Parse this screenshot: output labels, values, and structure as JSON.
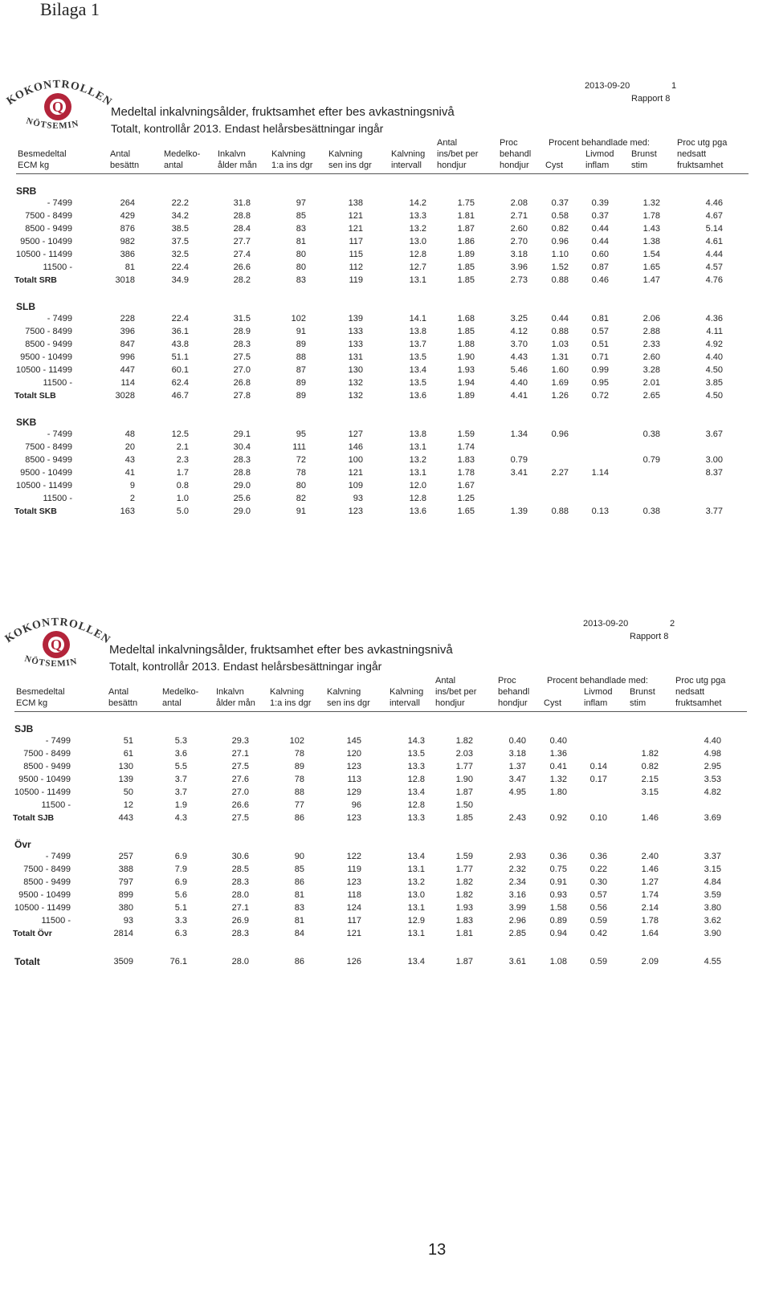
{
  "page": {
    "label": "Bilaga 1",
    "number": "13"
  },
  "reports": [
    {
      "logo": {
        "top": "KOKONTROLLEN",
        "mark": "Q",
        "bottom": "NÖTSEMIN"
      },
      "date": "2013-09-20",
      "page": "1",
      "report": "Rapport 8",
      "title": "Medeltal inkalvningsålder, fruktsamhet efter bes avkastningsnivå",
      "subtitle": "Totalt, kontrollår 2013. Endast helårsbesättningar ingår",
      "column_group": "Procent behandlade med:",
      "columns": [
        [
          "Besmedeltal",
          "ECM kg"
        ],
        [
          "Antal",
          "besättn"
        ],
        [
          "Medelko-",
          "antal"
        ],
        [
          "Inkalvn",
          "ålder mån"
        ],
        [
          "Kalvning",
          "1:a ins dgr"
        ],
        [
          "Kalvning",
          "sen ins dgr"
        ],
        [
          "Kalvning",
          "intervall"
        ],
        [
          "Antal",
          "ins/bet per",
          "hondjur"
        ],
        [
          "Proc",
          "behandl",
          "hondjur"
        ],
        [
          "Cyst"
        ],
        [
          "Livmod",
          "inflam"
        ],
        [
          "Brunst",
          "stim"
        ],
        [
          "Proc utg pga",
          "nedsatt",
          "fruktsamhet"
        ]
      ],
      "groups": [
        {
          "name": "SRB",
          "rows": [
            {
              "label": "- 7499",
              "values": [
                "264",
                "22.2",
                "31.8",
                "97",
                "138",
                "14.2",
                "1.75",
                "2.08",
                "0.37",
                "0.39",
                "1.32",
                "4.46"
              ]
            },
            {
              "label": "7500 - 8499",
              "values": [
                "429",
                "34.2",
                "28.8",
                "85",
                "121",
                "13.3",
                "1.81",
                "2.71",
                "0.58",
                "0.37",
                "1.78",
                "4.67"
              ]
            },
            {
              "label": "8500 - 9499",
              "values": [
                "876",
                "38.5",
                "28.4",
                "83",
                "121",
                "13.2",
                "1.87",
                "2.60",
                "0.82",
                "0.44",
                "1.43",
                "5.14"
              ]
            },
            {
              "label": "9500 - 10499",
              "values": [
                "982",
                "37.5",
                "27.7",
                "81",
                "117",
                "13.0",
                "1.86",
                "2.70",
                "0.96",
                "0.44",
                "1.38",
                "4.61"
              ]
            },
            {
              "label": "10500 - 11499",
              "values": [
                "386",
                "32.5",
                "27.4",
                "80",
                "115",
                "12.8",
                "1.89",
                "3.18",
                "1.10",
                "0.60",
                "1.54",
                "4.44"
              ]
            },
            {
              "label": "11500 -",
              "values": [
                "81",
                "22.4",
                "26.6",
                "80",
                "112",
                "12.7",
                "1.85",
                "3.96",
                "1.52",
                "0.87",
                "1.65",
                "4.57"
              ]
            }
          ],
          "total": {
            "label": "Totalt SRB",
            "values": [
              "3018",
              "34.9",
              "28.2",
              "83",
              "119",
              "13.1",
              "1.85",
              "2.73",
              "0.88",
              "0.46",
              "1.47",
              "4.76"
            ]
          }
        },
        {
          "name": "SLB",
          "rows": [
            {
              "label": "- 7499",
              "values": [
                "228",
                "22.4",
                "31.5",
                "102",
                "139",
                "14.1",
                "1.68",
                "3.25",
                "0.44",
                "0.81",
                "2.06",
                "4.36"
              ]
            },
            {
              "label": "7500 - 8499",
              "values": [
                "396",
                "36.1",
                "28.9",
                "91",
                "133",
                "13.8",
                "1.85",
                "4.12",
                "0.88",
                "0.57",
                "2.88",
                "4.11"
              ]
            },
            {
              "label": "8500 - 9499",
              "values": [
                "847",
                "43.8",
                "28.3",
                "89",
                "133",
                "13.7",
                "1.88",
                "3.70",
                "1.03",
                "0.51",
                "2.33",
                "4.92"
              ]
            },
            {
              "label": "9500 - 10499",
              "values": [
                "996",
                "51.1",
                "27.5",
                "88",
                "131",
                "13.5",
                "1.90",
                "4.43",
                "1.31",
                "0.71",
                "2.60",
                "4.40"
              ]
            },
            {
              "label": "10500 - 11499",
              "values": [
                "447",
                "60.1",
                "27.0",
                "87",
                "130",
                "13.4",
                "1.93",
                "5.46",
                "1.60",
                "0.99",
                "3.28",
                "4.50"
              ]
            },
            {
              "label": "11500 -",
              "values": [
                "114",
                "62.4",
                "26.8",
                "89",
                "132",
                "13.5",
                "1.94",
                "4.40",
                "1.69",
                "0.95",
                "2.01",
                "3.85"
              ]
            }
          ],
          "total": {
            "label": "Totalt SLB",
            "values": [
              "3028",
              "46.7",
              "27.8",
              "89",
              "132",
              "13.6",
              "1.89",
              "4.41",
              "1.26",
              "0.72",
              "2.65",
              "4.50"
            ]
          }
        },
        {
          "name": "SKB",
          "rows": [
            {
              "label": "- 7499",
              "values": [
                "48",
                "12.5",
                "29.1",
                "95",
                "127",
                "13.8",
                "1.59",
                "1.34",
                "0.96",
                null,
                "0.38",
                "3.67"
              ]
            },
            {
              "label": "7500 - 8499",
              "values": [
                "20",
                "2.1",
                "30.4",
                "111",
                "146",
                "13.1",
                "1.74",
                null,
                null,
                null,
                null,
                null
              ]
            },
            {
              "label": "8500 - 9499",
              "values": [
                "43",
                "2.3",
                "28.3",
                "72",
                "100",
                "13.2",
                "1.83",
                "0.79",
                null,
                null,
                "0.79",
                "3.00"
              ]
            },
            {
              "label": "9500 - 10499",
              "values": [
                "41",
                "1.7",
                "28.8",
                "78",
                "121",
                "13.1",
                "1.78",
                "3.41",
                "2.27",
                "1.14",
                null,
                "8.37"
              ]
            },
            {
              "label": "10500 - 11499",
              "values": [
                "9",
                "0.8",
                "29.0",
                "80",
                "109",
                "12.0",
                "1.67",
                null,
                null,
                null,
                null,
                null
              ]
            },
            {
              "label": "11500 -",
              "values": [
                "2",
                "1.0",
                "25.6",
                "82",
                "93",
                "12.8",
                "1.25",
                null,
                null,
                null,
                null,
                null
              ]
            }
          ],
          "total": {
            "label": "Totalt SKB",
            "values": [
              "163",
              "5.0",
              "29.0",
              "91",
              "123",
              "13.6",
              "1.65",
              "1.39",
              "0.88",
              "0.13",
              "0.38",
              "3.77"
            ]
          }
        }
      ]
    },
    {
      "logo": {
        "top": "KOKONTROLLEN",
        "mark": "Q",
        "bottom": "NÖTSEMIN"
      },
      "date": "2013-09-20",
      "page": "2",
      "report": "Rapport 8",
      "title": "Medeltal inkalvningsålder, fruktsamhet efter bes avkastningsnivå",
      "subtitle": "Totalt, kontrollår 2013. Endast helårsbesättningar ingår",
      "column_group": "Procent behandlade med:",
      "columns": [
        [
          "Besmedeltal",
          "ECM kg"
        ],
        [
          "Antal",
          "besättn"
        ],
        [
          "Medelko-",
          "antal"
        ],
        [
          "Inkalvn",
          "ålder mån"
        ],
        [
          "Kalvning",
          "1:a ins dgr"
        ],
        [
          "Kalvning",
          "sen ins dgr"
        ],
        [
          "Kalvning",
          "intervall"
        ],
        [
          "Antal",
          "ins/bet per",
          "hondjur"
        ],
        [
          "Proc",
          "behandl",
          "hondjur"
        ],
        [
          "Cyst"
        ],
        [
          "Livmod",
          "inflam"
        ],
        [
          "Brunst",
          "stim"
        ],
        [
          "Proc utg pga",
          "nedsatt",
          "fruktsamhet"
        ]
      ],
      "groups": [
        {
          "name": "SJB",
          "rows": [
            {
              "label": "- 7499",
              "values": [
                "51",
                "5.3",
                "29.3",
                "102",
                "145",
                "14.3",
                "1.82",
                "0.40",
                "0.40",
                null,
                null,
                "4.40"
              ]
            },
            {
              "label": "7500 - 8499",
              "values": [
                "61",
                "3.6",
                "27.1",
                "78",
                "120",
                "13.5",
                "2.03",
                "3.18",
                "1.36",
                null,
                "1.82",
                "4.98"
              ]
            },
            {
              "label": "8500 - 9499",
              "values": [
                "130",
                "5.5",
                "27.5",
                "89",
                "123",
                "13.3",
                "1.77",
                "1.37",
                "0.41",
                "0.14",
                "0.82",
                "2.95"
              ]
            },
            {
              "label": "9500 - 10499",
              "values": [
                "139",
                "3.7",
                "27.6",
                "78",
                "113",
                "12.8",
                "1.90",
                "3.47",
                "1.32",
                "0.17",
                "2.15",
                "3.53"
              ]
            },
            {
              "label": "10500 - 11499",
              "values": [
                "50",
                "3.7",
                "27.0",
                "88",
                "129",
                "13.4",
                "1.87",
                "4.95",
                "1.80",
                null,
                "3.15",
                "4.82"
              ]
            },
            {
              "label": "11500 -",
              "values": [
                "12",
                "1.9",
                "26.6",
                "77",
                "96",
                "12.8",
                "1.50",
                null,
                null,
                null,
                null,
                null
              ]
            }
          ],
          "total": {
            "label": "Totalt SJB",
            "values": [
              "443",
              "4.3",
              "27.5",
              "86",
              "123",
              "13.3",
              "1.85",
              "2.43",
              "0.92",
              "0.10",
              "1.46",
              "3.69"
            ]
          }
        },
        {
          "name": "Övr",
          "rows": [
            {
              "label": "- 7499",
              "values": [
                "257",
                "6.9",
                "30.6",
                "90",
                "122",
                "13.4",
                "1.59",
                "2.93",
                "0.36",
                "0.36",
                "2.40",
                "3.37"
              ]
            },
            {
              "label": "7500 - 8499",
              "values": [
                "388",
                "7.9",
                "28.5",
                "85",
                "119",
                "13.1",
                "1.77",
                "2.32",
                "0.75",
                "0.22",
                "1.46",
                "3.15"
              ]
            },
            {
              "label": "8500 - 9499",
              "values": [
                "797",
                "6.9",
                "28.3",
                "86",
                "123",
                "13.2",
                "1.82",
                "2.34",
                "0.91",
                "0.30",
                "1.27",
                "4.84"
              ]
            },
            {
              "label": "9500 - 10499",
              "values": [
                "899",
                "5.6",
                "28.0",
                "81",
                "118",
                "13.0",
                "1.82",
                "3.16",
                "0.93",
                "0.57",
                "1.74",
                "3.59"
              ]
            },
            {
              "label": "10500 - 11499",
              "values": [
                "380",
                "5.1",
                "27.1",
                "83",
                "124",
                "13.1",
                "1.93",
                "3.99",
                "1.58",
                "0.56",
                "2.14",
                "3.80"
              ]
            },
            {
              "label": "11500 -",
              "values": [
                "93",
                "3.3",
                "26.9",
                "81",
                "117",
                "12.9",
                "1.83",
                "2.96",
                "0.89",
                "0.59",
                "1.78",
                "3.62"
              ]
            }
          ],
          "total": {
            "label": "Totalt Övr",
            "values": [
              "2814",
              "6.3",
              "28.3",
              "84",
              "121",
              "13.1",
              "1.81",
              "2.85",
              "0.94",
              "0.42",
              "1.64",
              "3.90"
            ]
          }
        }
      ],
      "grand_total": {
        "label": "Totalt",
        "values": [
          "3509",
          "76.1",
          "28.0",
          "86",
          "126",
          "13.4",
          "1.87",
          "3.61",
          "1.08",
          "0.59",
          "2.09",
          "4.55"
        ]
      }
    }
  ]
}
